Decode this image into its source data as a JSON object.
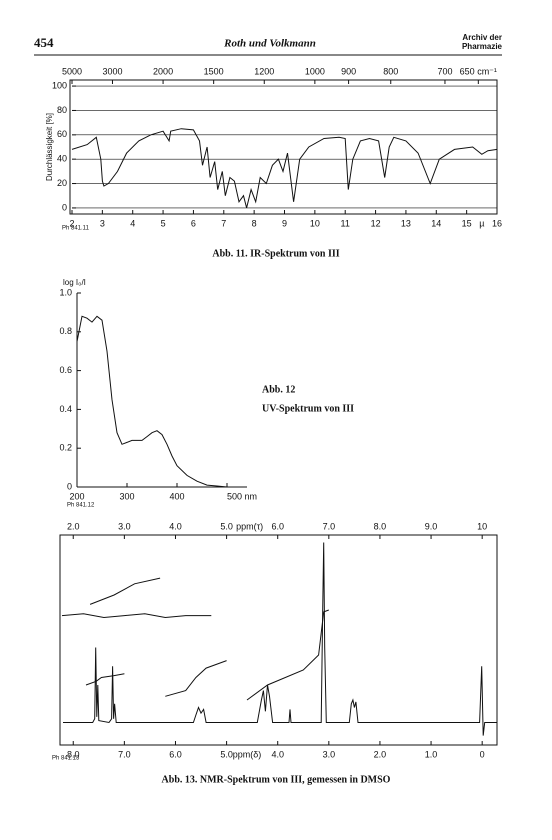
{
  "header": {
    "page_number": "454",
    "authors": "Roth und Volkmann",
    "journal": "Archiv der Pharmazie"
  },
  "chart_data": [
    {
      "type": "line",
      "caption": "Abb. 11. IR-Spektrum von III",
      "tag": "Ph 841.11",
      "y_label": "Durchlässigkeit [%]",
      "x_unit": "µ",
      "color": "#111111",
      "grid": true,
      "x": [
        2.0,
        2.5,
        2.8,
        2.95,
        3.0,
        3.05,
        3.2,
        3.5,
        3.8,
        4.2,
        4.6,
        5.0,
        5.2,
        5.25,
        5.6,
        6.0,
        6.2,
        6.3,
        6.45,
        6.55,
        6.7,
        6.8,
        6.95,
        7.05,
        7.2,
        7.35,
        7.5,
        7.65,
        7.75,
        7.9,
        8.05,
        8.2,
        8.4,
        8.6,
        8.8,
        8.95,
        9.1,
        9.3,
        9.5,
        9.8,
        10.3,
        10.8,
        11.0,
        11.1,
        11.25,
        11.5,
        11.8,
        12.1,
        12.3,
        12.45,
        12.6,
        13.0,
        13.4,
        13.8,
        14.1,
        14.6,
        15.2,
        15.5,
        15.7,
        16.0
      ],
      "values": [
        48,
        52,
        58,
        40,
        22,
        18,
        20,
        30,
        45,
        55,
        60,
        63,
        55,
        63,
        65,
        64,
        55,
        35,
        50,
        25,
        38,
        15,
        30,
        10,
        25,
        22,
        5,
        10,
        0,
        15,
        5,
        25,
        20,
        35,
        40,
        30,
        45,
        5,
        40,
        50,
        57,
        58,
        57,
        15,
        40,
        55,
        57,
        55,
        25,
        50,
        58,
        55,
        45,
        20,
        40,
        48,
        50,
        44,
        47,
        48
      ],
      "xlim": [
        2,
        16
      ],
      "ylim": [
        -5,
        105
      ],
      "xticks": [
        2,
        3,
        4,
        5,
        6,
        7,
        8,
        9,
        10,
        11,
        12,
        13,
        14,
        15,
        16
      ],
      "yticks": [
        0,
        20,
        40,
        60,
        80,
        100
      ],
      "x2lim": [
        5000,
        625
      ],
      "x2_scale": "reciprocal",
      "x2ticks": [
        5000,
        3000,
        2000,
        1500,
        1200,
        1000,
        900,
        800,
        700,
        {
          "value": 650,
          "label": "650 cm⁻¹"
        }
      ]
    },
    {
      "type": "line",
      "caption": "Abb. 12",
      "subcaption": "UV-Spektrum von III",
      "tag": "Ph 841.12",
      "y_label": "log I₀/I",
      "color": "#111111",
      "x": [
        200,
        210,
        220,
        230,
        240,
        250,
        260,
        270,
        280,
        290,
        300,
        310,
        320,
        330,
        340,
        350,
        360,
        370,
        380,
        390,
        400,
        420,
        440,
        460,
        480,
        500,
        540
      ],
      "values": [
        0.75,
        0.88,
        0.87,
        0.85,
        0.88,
        0.86,
        0.7,
        0.45,
        0.28,
        0.22,
        0.23,
        0.24,
        0.24,
        0.24,
        0.26,
        0.28,
        0.29,
        0.27,
        0.22,
        0.16,
        0.11,
        0.06,
        0.03,
        0.01,
        0.005,
        0,
        0
      ],
      "xlim": [
        200,
        540
      ],
      "ylim": [
        0,
        1.0
      ],
      "xticks": [
        200,
        300,
        400,
        {
          "value": 500,
          "label": "500 nm"
        }
      ],
      "yticks": [
        0,
        0.2,
        0.4,
        0.6,
        0.8,
        {
          "value": 1.0,
          "label": "1.0"
        }
      ]
    },
    {
      "type": "line",
      "caption": "Abb. 13. NMR-Spektrum von III, gemessen in DMSO",
      "tag": "Ph 841.13",
      "x_unit": "ppm(δ)",
      "x2_unit": "ppm(τ)",
      "color": "#111111",
      "xlim": [
        8.22,
        -0.29
      ],
      "ylim": [
        -12,
        100
      ],
      "xticks": [
        {
          "value": 8,
          "label": "8.0"
        },
        {
          "value": 7,
          "label": "7.0"
        },
        {
          "value": 6,
          "label": "6.0"
        },
        {
          "value": 5,
          "label": "5.0"
        },
        {
          "value": 4,
          "label": "4.0"
        },
        {
          "value": 3,
          "label": "3.0"
        },
        {
          "value": 2,
          "label": "2.0"
        },
        {
          "value": 1,
          "label": "1.0"
        },
        0
      ],
      "x2lim": [
        1.78,
        10.29
      ],
      "x2_scale": "linear",
      "x2ticks": [
        {
          "value": 2,
          "label": "2.0"
        },
        {
          "value": 3,
          "label": "3.0"
        },
        {
          "value": 4,
          "label": "4.0"
        },
        {
          "value": 5,
          "label": "5.0"
        },
        {
          "value": 6,
          "label": "6.0"
        },
        {
          "value": 7,
          "label": "7.0"
        },
        {
          "value": 8,
          "label": "8.0"
        },
        {
          "value": 9,
          "label": "9.0"
        },
        10
      ],
      "series": [
        {
          "x": [
            8.2,
            7.62,
            7.58,
            7.56,
            7.54,
            7.52,
            7.5,
            7.3,
            7.25,
            7.23,
            7.21,
            7.19,
            7.16,
            5.65,
            5.6,
            5.55,
            5.5,
            5.45,
            5.4,
            4.4,
            4.32,
            4.28,
            4.24,
            4.2,
            4.16,
            4.1,
            3.78,
            3.76,
            3.74,
            3.15,
            3.12,
            3.1,
            3.08,
            3.05,
            2.6,
            2.56,
            2.53,
            2.5,
            2.47,
            2.43,
            0.05,
            0.01,
            -0.02,
            -0.05,
            -0.29
          ],
          "values": [
            0,
            0,
            2,
            40,
            3,
            20,
            1,
            0,
            2,
            30,
            2,
            10,
            0,
            0,
            4,
            8,
            5,
            7,
            0,
            0,
            12,
            17,
            6,
            20,
            14,
            0,
            0,
            7,
            0,
            0,
            60,
            96,
            40,
            0,
            0,
            10,
            12,
            8,
            11,
            0,
            0,
            30,
            -7,
            0,
            0
          ]
        },
        {
          "x": [
            7.75,
            7.55,
            7.45,
            7.2,
            7.0
          ],
          "values": [
            20,
            22,
            24,
            25,
            26
          ]
        },
        {
          "x": [
            6.2,
            5.8,
            5.6,
            5.4,
            5.0
          ],
          "values": [
            14,
            17,
            24,
            29,
            33
          ]
        },
        {
          "x": [
            4.6,
            4.2,
            3.5,
            3.2,
            3.1,
            3.0
          ],
          "values": [
            12,
            20,
            28,
            36,
            59,
            60
          ]
        },
        {
          "x": [
            8.22,
            7.8,
            7.4,
            7.0,
            6.6,
            6.2,
            5.8,
            5.3
          ],
          "values": [
            57,
            58,
            56,
            57,
            58,
            56,
            57,
            57
          ]
        },
        {
          "x": [
            7.67,
            7.2,
            6.8,
            6.3
          ],
          "values": [
            63,
            68,
            74,
            77
          ]
        }
      ]
    }
  ]
}
